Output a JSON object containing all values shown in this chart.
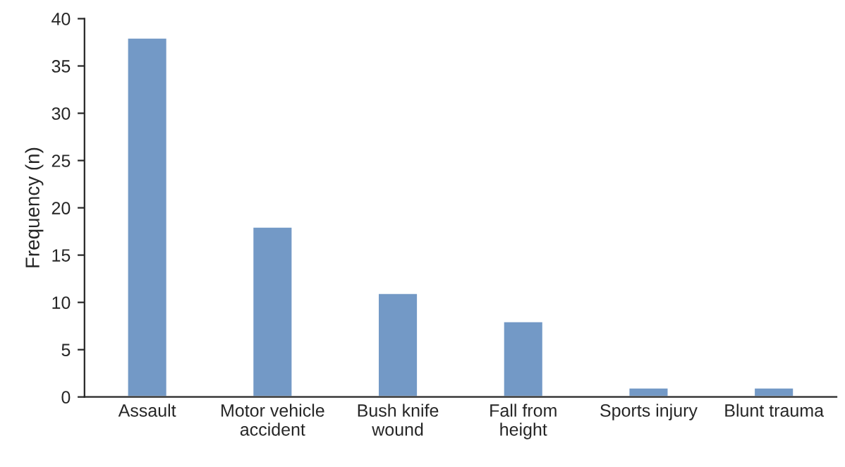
{
  "chart_data": {
    "type": "bar",
    "ylabel": "Frequency (n)",
    "categories": [
      "Assault",
      "Motor vehicle\naccident",
      "Bush knife\nwound",
      "Fall from\nheight",
      "Sports injury",
      "Blunt trauma"
    ],
    "values": [
      38,
      18,
      11,
      8,
      1,
      1
    ],
    "color": "#7399c6",
    "ylim": [
      0,
      40
    ],
    "yticks": [
      0,
      5,
      10,
      15,
      20,
      25,
      30,
      35,
      40
    ],
    "grid": false,
    "legend": false
  }
}
